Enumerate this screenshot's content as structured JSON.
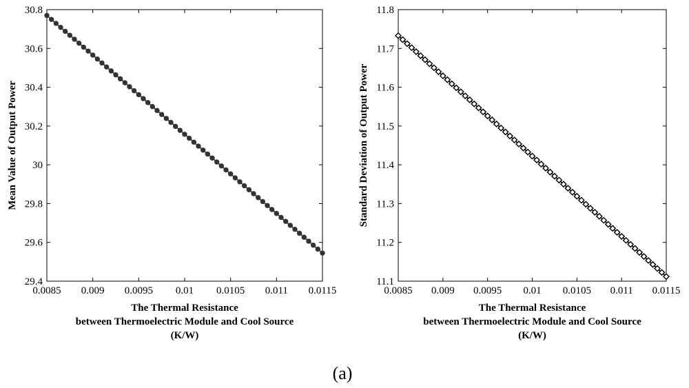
{
  "figure": {
    "caption": "(a)"
  },
  "chart_data": [
    {
      "type": "line",
      "xlabel": [
        "The Thermal Resistance",
        "between Thermoelectric Module and Cool Source",
        "(K/W)"
      ],
      "ylabel": "Mean Value of Output Power",
      "xlim": [
        0.0085,
        0.0115
      ],
      "ylim": [
        29.4,
        30.8
      ],
      "xticks": [
        0.0085,
        0.009,
        0.0095,
        0.01,
        0.0105,
        0.011,
        0.0115
      ],
      "xtick_labels": [
        "0.0085",
        "0.009",
        "0.0095",
        "0.01",
        "0.0105",
        "0.011",
        "0.0115"
      ],
      "yticks": [
        29.4,
        29.6,
        29.8,
        30,
        30.2,
        30.4,
        30.6,
        30.8
      ],
      "ytick_labels": [
        "29.4",
        "29.6",
        "29.8",
        "30",
        "30.2",
        "30.4",
        "30.6",
        "30.8"
      ],
      "grid": false,
      "marker": "circle",
      "color": "#333333",
      "series": [
        {
          "x_start": 0.0085,
          "x_end": 0.0115,
          "y_start": 30.77,
          "y_end": 29.545,
          "points": 61
        }
      ]
    },
    {
      "type": "line",
      "xlabel": [
        "The Thermal Resistance",
        "between Thermoelectric Module and Cool Source",
        "(K/W)"
      ],
      "ylabel": "Standard Deviation of Output Power",
      "xlim": [
        0.0085,
        0.0115
      ],
      "ylim": [
        11.1,
        11.8
      ],
      "xticks": [
        0.0085,
        0.009,
        0.0095,
        0.01,
        0.0105,
        0.011,
        0.0115
      ],
      "xtick_labels": [
        "0.0085",
        "0.009",
        "0.0095",
        "0.01",
        "0.0105",
        "0.011",
        "0.0115"
      ],
      "yticks": [
        11.1,
        11.2,
        11.3,
        11.4,
        11.5,
        11.6,
        11.7,
        11.8
      ],
      "ytick_labels": [
        "11.1",
        "11.2",
        "11.3",
        "11.4",
        "11.5",
        "11.6",
        "11.7",
        "11.8"
      ],
      "grid": false,
      "marker": "diamond",
      "color": "#000000",
      "series": [
        {
          "x_start": 0.0085,
          "x_end": 0.0115,
          "y_start": 11.733,
          "y_end": 11.112,
          "points": 61
        }
      ]
    }
  ]
}
